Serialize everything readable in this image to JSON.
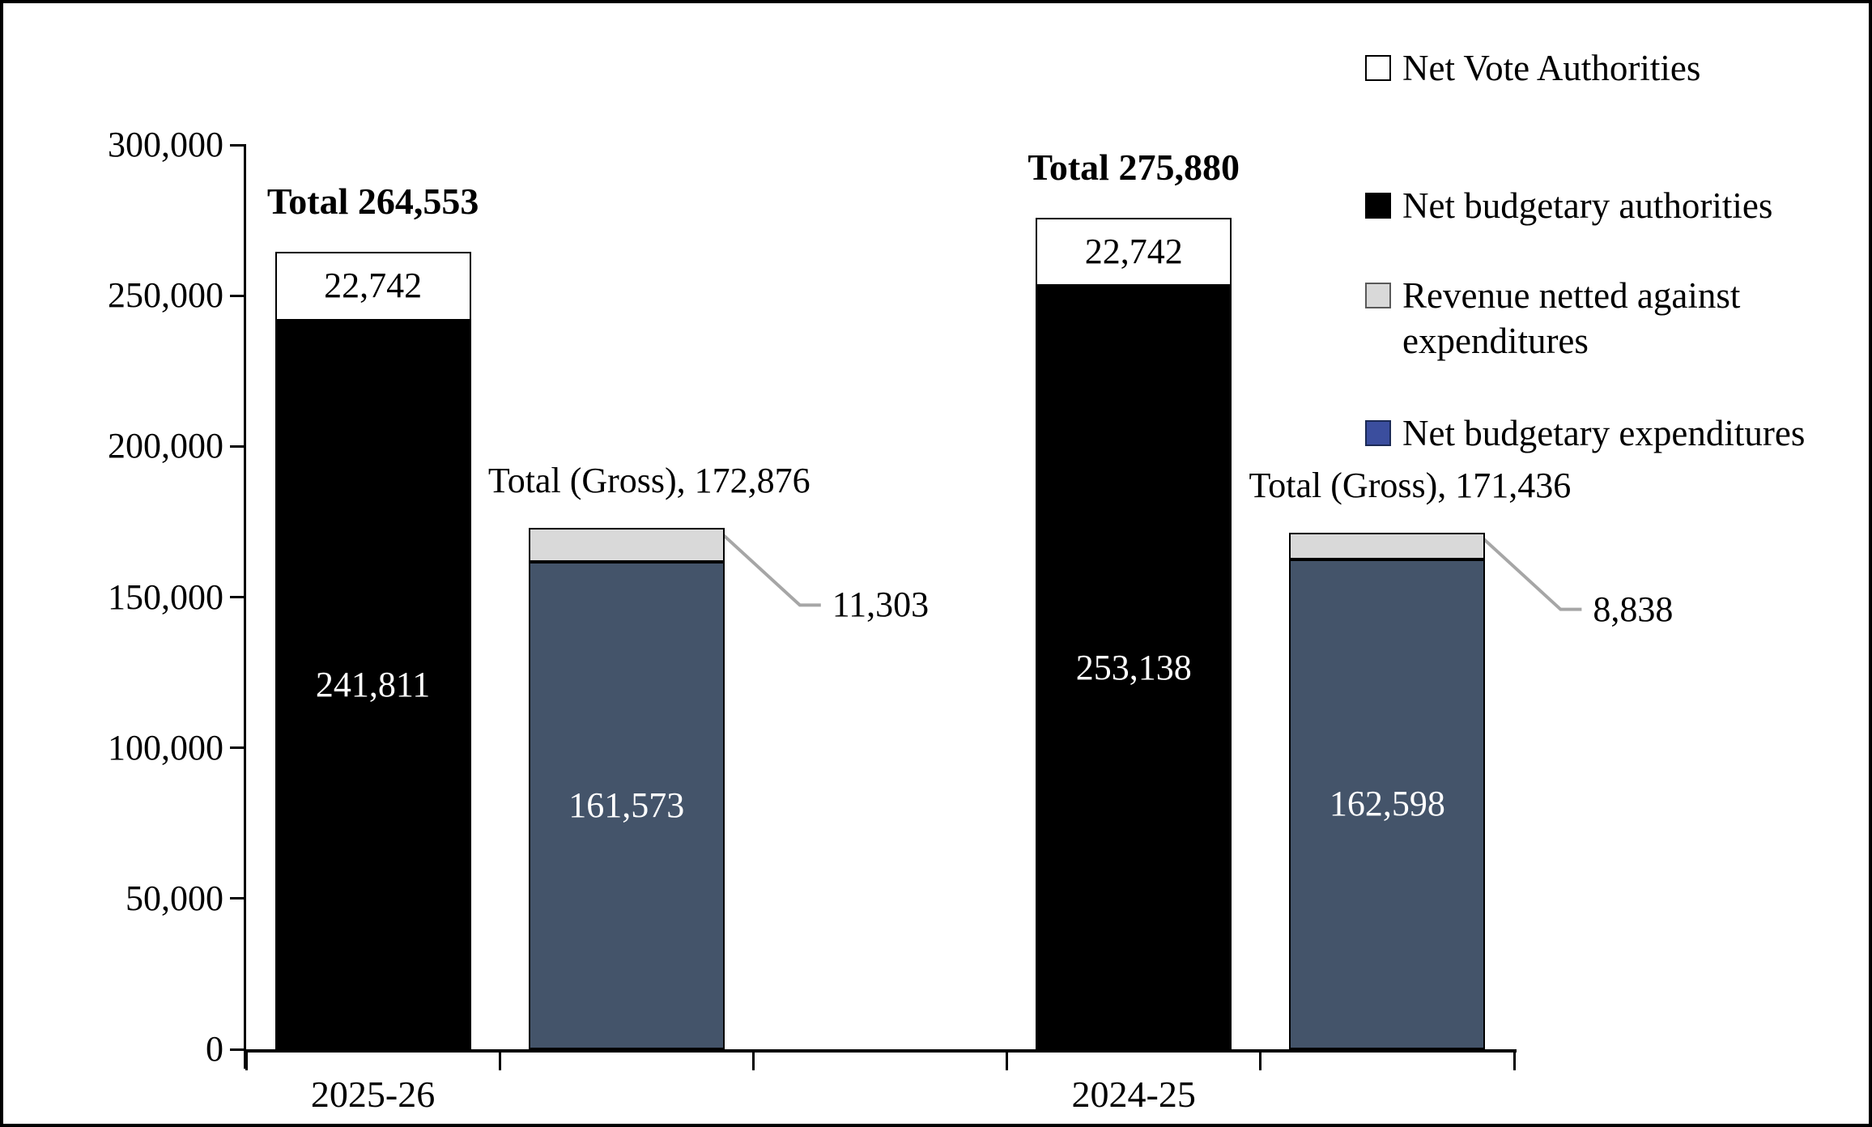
{
  "chart_data": {
    "type": "bar",
    "stacked": true,
    "title": "",
    "xlabel": "",
    "ylabel": "",
    "grid": false,
    "legend_position": "right",
    "y_axis": {
      "min": 0,
      "max": 300000,
      "step": 50000,
      "tick_labels": [
        "0",
        "50,000",
        "100,000",
        "150,000",
        "200,000",
        "250,000",
        "300,000"
      ]
    },
    "categories": [
      "2025-26",
      "2024-25"
    ],
    "groups": [
      {
        "category": "2025-26",
        "stacks": [
          {
            "name": "authorities",
            "total": 264553,
            "total_label": "Total 264,553",
            "total_bold": true,
            "segments": [
              {
                "series": "Net budgetary authorities",
                "value": 241811,
                "label": "241,811"
              },
              {
                "series": "Net Vote Authorities",
                "value": 22742,
                "label": "22,742"
              }
            ]
          },
          {
            "name": "gross",
            "total": 172876,
            "total_label": "Total (Gross), 172,876",
            "total_bold": false,
            "segments": [
              {
                "series": "Net budgetary expenditures",
                "value": 161573,
                "label": "161,573"
              },
              {
                "series": "Revenue netted against expenditures",
                "value": 11303,
                "label": "11,303",
                "callout": true
              }
            ]
          }
        ]
      },
      {
        "category": "2024-25",
        "stacks": [
          {
            "name": "authorities",
            "total": 275880,
            "total_label": "Total 275,880",
            "total_bold": true,
            "segments": [
              {
                "series": "Net budgetary authorities",
                "value": 253138,
                "label": "253,138"
              },
              {
                "series": "Net Vote Authorities",
                "value": 22742,
                "label": "22,742"
              }
            ]
          },
          {
            "name": "gross",
            "total": 171436,
            "total_label": "Total (Gross), 171,436",
            "total_bold": false,
            "segments": [
              {
                "series": "Net budgetary expenditures",
                "value": 162598,
                "label": "162,598"
              },
              {
                "series": "Revenue netted against expenditures",
                "value": 8838,
                "label": "8,838",
                "callout": true
              }
            ]
          }
        ]
      }
    ],
    "series_colors": {
      "Net budgetary authorities": "#000000",
      "Net Vote Authorities": "#FFFFFF",
      "Net budgetary expenditures": "#44546A",
      "Revenue netted against expenditures": "#D9D9D9"
    },
    "series_label_colors": {
      "Net budgetary authorities": "#FFFFFF",
      "Net Vote Authorities": "#000000",
      "Net budgetary expenditures": "#FFFFFF",
      "Revenue netted against expenditures": "#000000"
    },
    "legend": [
      {
        "label": "Net Vote Authorities",
        "lines": [
          "Net Vote Authorities"
        ],
        "fill": "#FFFFFF",
        "border": "#000000"
      },
      {
        "label": "Net budgetary authorities",
        "lines": [
          "Net budgetary authorities"
        ],
        "fill": "#000000",
        "border": "#000000"
      },
      {
        "label": "Revenue netted against expenditures",
        "lines": [
          "Revenue netted against",
          "expenditures"
        ],
        "fill": "#D9D9D9",
        "border": "#595959"
      },
      {
        "label": "Net budgetary expenditures",
        "lines": [
          "Net budgetary expenditures"
        ],
        "fill": "#3B4E9E",
        "border": "#1B2A55"
      }
    ],
    "leader_line_color": "#A6A6A6",
    "axis_color": "#000000"
  }
}
